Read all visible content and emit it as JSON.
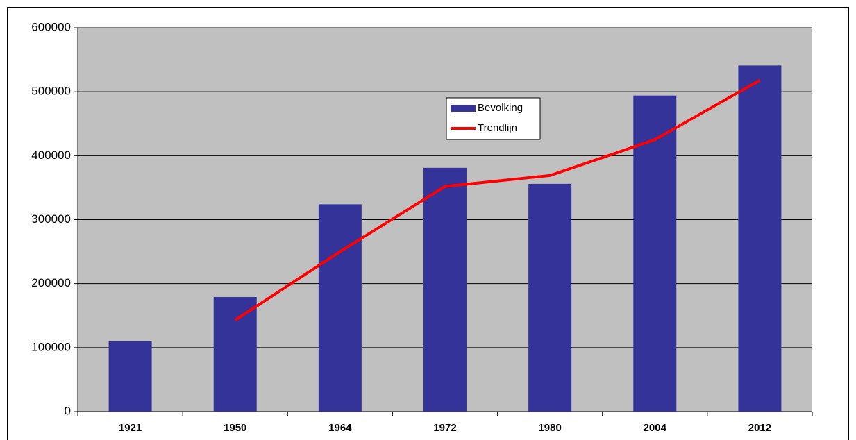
{
  "chart_data": {
    "type": "bar",
    "categories": [
      "1921",
      "1950",
      "1964",
      "1972",
      "1980",
      "2004",
      "2012"
    ],
    "series": [
      {
        "name": "Bevolking",
        "type": "bar",
        "color": "#333399",
        "values": [
          110000,
          179000,
          324000,
          381000,
          356000,
          494000,
          541000
        ]
      },
      {
        "name": "Trendlijn",
        "type": "line",
        "color": "#ff0000",
        "values": [
          null,
          143000,
          250000,
          352000,
          369000,
          425000,
          518000
        ]
      }
    ],
    "ylim": [
      0,
      600000
    ],
    "yticks": [
      0,
      100000,
      200000,
      300000,
      400000,
      500000,
      600000
    ],
    "grid": true,
    "plot_background": "#c0c0c0",
    "legend": "top"
  }
}
